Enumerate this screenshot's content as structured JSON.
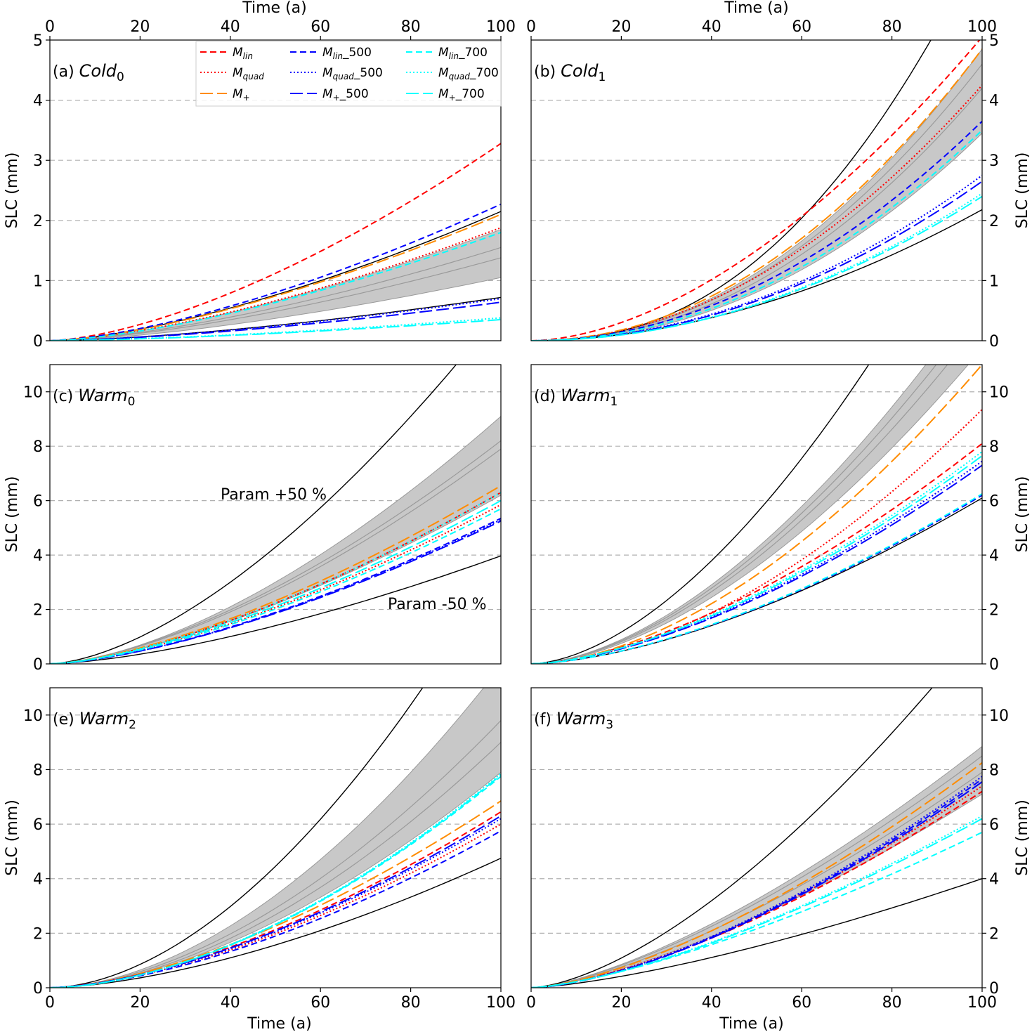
{
  "figure": {
    "x_label_top": "Time (a)",
    "x_label_bottom": "Time (a)",
    "y_label": "SLC (mm)"
  },
  "legend": [
    {
      "name": "M_lin",
      "color": "#ff0000",
      "dash": "dashed"
    },
    {
      "name": "M_quad",
      "color": "#ff0000",
      "dash": "dotted"
    },
    {
      "name": "M_+",
      "color": "#ff8c00",
      "dash": "longdash"
    },
    {
      "name": "M_lin_500",
      "color": "#0000ff",
      "dash": "dashed"
    },
    {
      "name": "M_quad_500",
      "color": "#0000ff",
      "dash": "dotted"
    },
    {
      "name": "M_+_500",
      "color": "#0000ff",
      "dash": "longdash"
    },
    {
      "name": "M_lin_700",
      "color": "#00ffff",
      "dash": "dashed"
    },
    {
      "name": "M_quad_700",
      "color": "#00ffff",
      "dash": "dotted"
    },
    {
      "name": "M_+_700",
      "color": "#00ffff",
      "dash": "longdash"
    }
  ],
  "annotations": {
    "param_plus": "Param +50 %",
    "param_minus": "Param -50 %"
  },
  "chart_data": [
    {
      "type": "line",
      "panel": "(a)",
      "title_base": "Cold",
      "title_sub": "0",
      "x": [
        0,
        100
      ],
      "xlim": [
        0,
        100
      ],
      "ylim": [
        0,
        5
      ],
      "yticks": [
        0,
        1,
        2,
        3,
        4,
        5
      ],
      "xticks": [
        0,
        20,
        40,
        60,
        80,
        100
      ],
      "grid": "horizontal dashed",
      "band": {
        "start": [
          0,
          0
        ],
        "end": [
          0.04,
          0.04
        ],
        "lower_end": 1.05,
        "upper_end": 1.85,
        "lower_exp": 1.5,
        "upper_exp": 1.5
      },
      "band_lines": [
        1.55,
        1.38
      ],
      "envelope_upper": {
        "end": 2.15,
        "exp": 1.5
      },
      "envelope_lower": {
        "end": 0.72,
        "exp": 1.5
      },
      "series": [
        {
          "name": "M_lin",
          "end": 3.28,
          "exp": 1.55
        },
        {
          "name": "M_quad",
          "end": 1.88,
          "exp": 1.5
        },
        {
          "name": "M_+",
          "end": 2.1,
          "exp": 1.5
        },
        {
          "name": "M_lin_500",
          "end": 2.27,
          "exp": 1.5
        },
        {
          "name": "M_quad_500",
          "end": 0.7,
          "exp": 1.5
        },
        {
          "name": "M_+_500",
          "end": 0.64,
          "exp": 1.5
        },
        {
          "name": "M_lin_700",
          "end": 1.8,
          "exp": 1.5
        },
        {
          "name": "M_quad_700",
          "end": 0.38,
          "exp": 1.5
        },
        {
          "name": "M_+_700",
          "end": 0.35,
          "exp": 1.5
        }
      ]
    },
    {
      "type": "line",
      "panel": "(b)",
      "title_base": "Cold",
      "title_sub": "1",
      "xlim": [
        0,
        100
      ],
      "ylim": [
        0,
        5
      ],
      "yticks": [
        0,
        1,
        2,
        3,
        4,
        5
      ],
      "xticks": [
        0,
        20,
        40,
        60,
        80,
        100
      ],
      "grid": "horizontal dashed",
      "band": {
        "lower_end": 3.45,
        "upper_end": 4.85,
        "lower_exp": 2.1,
        "upper_exp": 2.1
      },
      "band_lines": [
        4.6,
        4.2
      ],
      "envelope_upper": {
        "end": 6.6,
        "exp": 2.3
      },
      "envelope_lower": {
        "end": 2.18,
        "exp": 1.9
      },
      "series": [
        {
          "name": "M_lin",
          "end": 5.05,
          "exp": 1.75
        },
        {
          "name": "M_quad",
          "end": 4.25,
          "exp": 2.0
        },
        {
          "name": "M_+",
          "end": 4.85,
          "exp": 2.05
        },
        {
          "name": "M_lin_500",
          "end": 3.65,
          "exp": 2.0
        },
        {
          "name": "M_quad_500",
          "end": 2.75,
          "exp": 2.0
        },
        {
          "name": "M_+_500",
          "end": 2.65,
          "exp": 2.0
        },
        {
          "name": "M_lin_700",
          "end": 3.5,
          "exp": 2.05
        },
        {
          "name": "M_quad_700",
          "end": 2.45,
          "exp": 2.0
        },
        {
          "name": "M_+_700",
          "end": 2.4,
          "exp": 2.0
        }
      ]
    },
    {
      "type": "line",
      "panel": "(c)",
      "title_base": "Warm",
      "title_sub": "0",
      "xlim": [
        0,
        100
      ],
      "ylim": [
        0,
        11
      ],
      "yticks": [
        0,
        2,
        4,
        6,
        8,
        10
      ],
      "xticks": [
        0,
        20,
        40,
        60,
        80,
        100
      ],
      "grid": "horizontal dashed",
      "band": {
        "lower_end": 6.2,
        "upper_end": 9.1,
        "lower_exp": 1.5,
        "upper_exp": 1.6
      },
      "band_lines": [
        8.2,
        7.9
      ],
      "envelope_upper": {
        "end": 13.0,
        "exp": 1.6
      },
      "envelope_lower": {
        "end": 3.97,
        "exp": 1.5
      },
      "series": [
        {
          "name": "M_lin",
          "end": 6.3,
          "exp": 1.5
        },
        {
          "name": "M_quad",
          "end": 5.85,
          "exp": 1.5
        },
        {
          "name": "M_+",
          "end": 6.55,
          "exp": 1.5
        },
        {
          "name": "M_lin_500",
          "end": 5.35,
          "exp": 1.5
        },
        {
          "name": "M_quad_500",
          "end": 5.3,
          "exp": 1.5
        },
        {
          "name": "M_+_500",
          "end": 5.25,
          "exp": 1.5
        },
        {
          "name": "M_lin_700",
          "end": 5.7,
          "exp": 1.5
        },
        {
          "name": "M_quad_700",
          "end": 6.3,
          "exp": 1.5
        },
        {
          "name": "M_+_700",
          "end": 6.0,
          "exp": 1.5
        }
      ]
    },
    {
      "type": "line",
      "panel": "(d)",
      "title_base": "Warm",
      "title_sub": "1",
      "xlim": [
        0,
        100
      ],
      "ylim": [
        0,
        11
      ],
      "yticks": [
        0,
        2,
        4,
        6,
        8,
        10
      ],
      "xticks": [
        0,
        20,
        40,
        60,
        80,
        100
      ],
      "grid": "horizontal dashed",
      "band": {
        "lower_end": 11.6,
        "upper_end": 13.8,
        "lower_exp": 1.7,
        "upper_exp": 1.7
      },
      "band_lines": [
        13.2,
        12.6
      ],
      "envelope_upper": {
        "end": 18.0,
        "exp": 1.7
      },
      "envelope_lower": {
        "end": 6.1,
        "exp": 1.6
      },
      "series": [
        {
          "name": "M_lin",
          "end": 8.1,
          "exp": 1.6
        },
        {
          "name": "M_quad",
          "end": 9.35,
          "exp": 1.75
        },
        {
          "name": "M_+",
          "end": 11.0,
          "exp": 1.75
        },
        {
          "name": "M_lin_500",
          "end": 6.2,
          "exp": 1.6
        },
        {
          "name": "M_quad_500",
          "end": 7.45,
          "exp": 1.6
        },
        {
          "name": "M_+_500",
          "end": 7.3,
          "exp": 1.6
        },
        {
          "name": "M_lin_700",
          "end": 6.25,
          "exp": 1.6
        },
        {
          "name": "M_quad_700",
          "end": 7.8,
          "exp": 1.6
        },
        {
          "name": "M_+_700",
          "end": 7.65,
          "exp": 1.6
        }
      ]
    },
    {
      "type": "line",
      "panel": "(e)",
      "title_base": "Warm",
      "title_sub": "2",
      "xlim": [
        0,
        100
      ],
      "ylim": [
        0,
        11
      ],
      "yticks": [
        0,
        2,
        4,
        6,
        8,
        10
      ],
      "xticks": [
        0,
        20,
        40,
        60,
        80,
        100
      ],
      "grid": "horizontal dashed",
      "band": {
        "lower_end": 7.9,
        "upper_end": 11.8,
        "lower_exp": 1.7,
        "upper_exp": 1.8
      },
      "band_lines": [
        9.8,
        9.0
      ],
      "envelope_upper": {
        "end": 15.5,
        "exp": 1.8
      },
      "envelope_lower": {
        "end": 4.75,
        "exp": 1.6
      },
      "series": [
        {
          "name": "M_lin",
          "end": 6.45,
          "exp": 1.6
        },
        {
          "name": "M_quad",
          "end": 6.0,
          "exp": 1.6
        },
        {
          "name": "M_+",
          "end": 6.85,
          "exp": 1.6
        },
        {
          "name": "M_lin_500",
          "end": 5.75,
          "exp": 1.6
        },
        {
          "name": "M_quad_500",
          "end": 6.2,
          "exp": 1.6
        },
        {
          "name": "M_+_500",
          "end": 6.3,
          "exp": 1.6
        },
        {
          "name": "M_lin_700",
          "end": 7.75,
          "exp": 1.75
        },
        {
          "name": "M_quad_700",
          "end": 7.85,
          "exp": 1.75
        },
        {
          "name": "M_+_700",
          "end": 7.8,
          "exp": 1.75
        }
      ]
    },
    {
      "type": "line",
      "panel": "(f)",
      "title_base": "Warm",
      "title_sub": "3",
      "xlim": [
        0,
        100
      ],
      "ylim": [
        0,
        11
      ],
      "yticks": [
        0,
        2,
        4,
        6,
        8,
        10
      ],
      "xticks": [
        0,
        20,
        40,
        60,
        80,
        100
      ],
      "grid": "horizontal dashed",
      "band": {
        "lower_end": 7.1,
        "upper_end": 8.85,
        "lower_exp": 1.45,
        "upper_exp": 1.45
      },
      "band_lines": [
        8.5,
        7.9
      ],
      "envelope_upper": {
        "end": 13.2,
        "exp": 1.55
      },
      "envelope_lower": {
        "end": 4.0,
        "exp": 1.4
      },
      "series": [
        {
          "name": "M_lin",
          "end": 7.2,
          "exp": 1.5
        },
        {
          "name": "M_quad",
          "end": 7.4,
          "exp": 1.5
        },
        {
          "name": "M_+",
          "end": 8.25,
          "exp": 1.5
        },
        {
          "name": "M_lin_500",
          "end": 7.65,
          "exp": 1.55
        },
        {
          "name": "M_quad_500",
          "end": 7.75,
          "exp": 1.55
        },
        {
          "name": "M_+_500",
          "end": 7.55,
          "exp": 1.55
        },
        {
          "name": "M_lin_700",
          "end": 5.7,
          "exp": 1.4
        },
        {
          "name": "M_quad_700",
          "end": 6.3,
          "exp": 1.45
        },
        {
          "name": "M_+_700",
          "end": 6.2,
          "exp": 1.45
        }
      ]
    }
  ]
}
